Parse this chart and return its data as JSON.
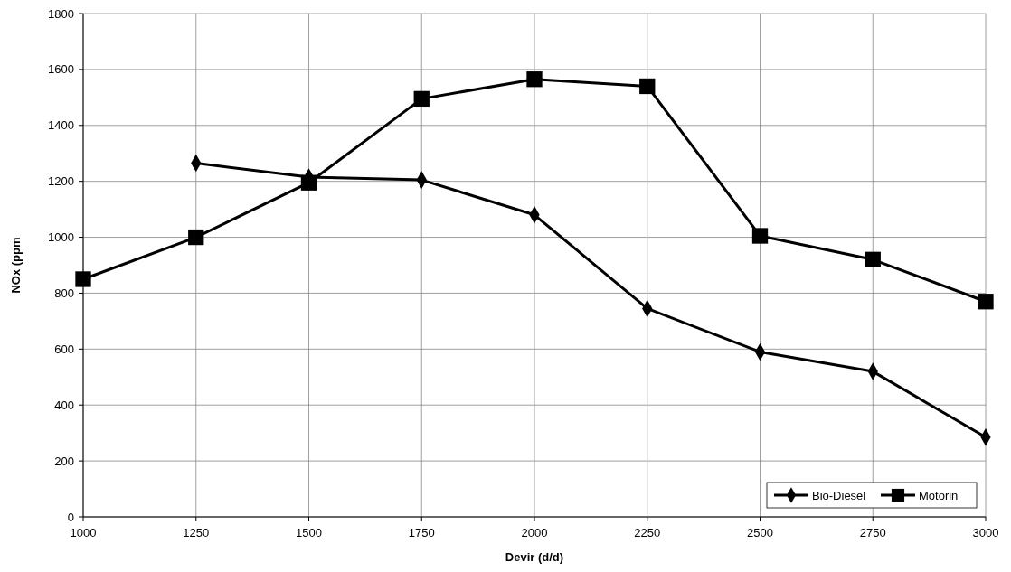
{
  "chart_data": {
    "type": "line",
    "xlabel": "Devir (d/d)",
    "ylabel": "NOx (ppm",
    "xlim": [
      1000,
      3000
    ],
    "xticks": [
      1000,
      1250,
      1500,
      1750,
      2000,
      2250,
      2500,
      2750,
      3000
    ],
    "ylim": [
      0,
      1800
    ],
    "yticks": [
      0,
      200,
      400,
      600,
      800,
      1000,
      1200,
      1400,
      1600,
      1800
    ],
    "grid": true,
    "legend": "bottom right",
    "line_style": "solid",
    "series": [
      {
        "name": "Bio-Diesel",
        "color": "#000000",
        "marker": "diamond",
        "x": [
          1250,
          1500,
          1750,
          2000,
          2250,
          2500,
          2750,
          3000
        ],
        "values": [
          1265,
          1215,
          1205,
          1080,
          745,
          590,
          520,
          285
        ]
      },
      {
        "name": "Motorin",
        "color": "#000000",
        "marker": "square",
        "x": [
          1000,
          1250,
          1500,
          1750,
          2000,
          2250,
          2500,
          2750,
          3000
        ],
        "values": [
          850,
          1000,
          1195,
          1495,
          1565,
          1540,
          1005,
          920,
          770
        ]
      }
    ]
  }
}
